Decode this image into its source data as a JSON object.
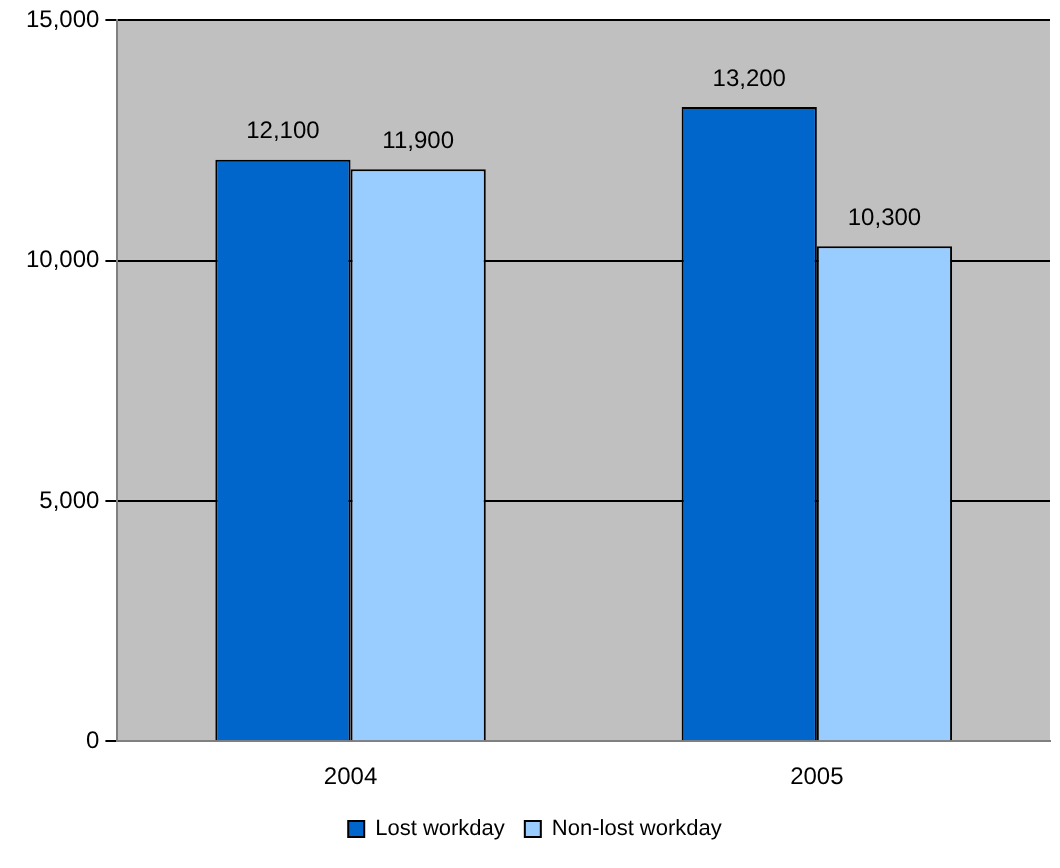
{
  "chart_data": {
    "type": "bar",
    "categories": [
      "2004",
      "2005"
    ],
    "series": [
      {
        "name": "Lost workday",
        "color": "#0066cc",
        "values": [
          12100,
          13200
        ],
        "value_labels": [
          "12,100",
          "13,200"
        ]
      },
      {
        "name": "Non-lost workday",
        "color": "#99ccff",
        "values": [
          11900,
          10300
        ],
        "value_labels": [
          "11,900",
          "10,300"
        ]
      }
    ],
    "ylim": [
      0,
      15000
    ],
    "yticks": [
      0,
      {
        "value": 5000,
        "label": "5,000"
      },
      {
        "value": 10000,
        "label": "10,000"
      },
      {
        "value": 15000,
        "label": "15,000"
      }
    ],
    "grid": "y",
    "legend": "bottom"
  }
}
